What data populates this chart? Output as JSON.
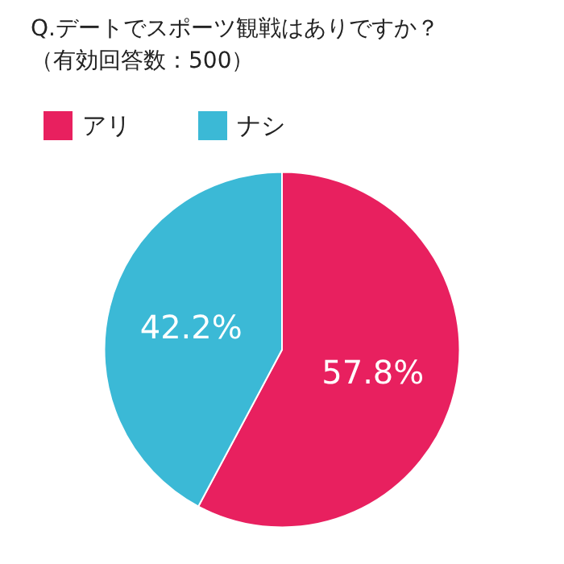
{
  "chart_data": {
    "type": "pie",
    "title": "Q.デートでスポーツ観戦はありですか？",
    "subtitle": "（有効回答数：500）",
    "categories": [
      "アリ",
      "ナシ"
    ],
    "values": [
      57.8,
      42.2
    ],
    "colors": [
      "#e8205f",
      "#3bb9d6"
    ],
    "value_labels": [
      "57.8%",
      "42.2%"
    ],
    "legend": "top left"
  }
}
